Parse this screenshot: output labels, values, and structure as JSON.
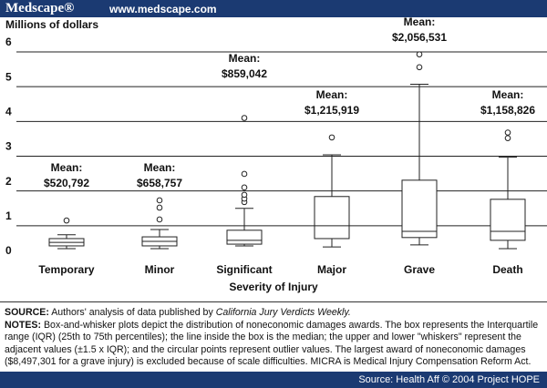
{
  "header": {
    "logo": "Medscape®",
    "url": "www.medscape.com"
  },
  "chart_data": {
    "type": "box",
    "y_label": "Millions of dollars",
    "x_label": "Severity of Injury",
    "categories": [
      "Temporary",
      "Minor",
      "Significant",
      "Major",
      "Grave",
      "Death"
    ],
    "boxes": [
      {
        "whislo": 0.34,
        "q1": 0.42,
        "med": 0.52,
        "q3": 0.63,
        "whishi": 0.74,
        "fliers": [
          1.15
        ]
      },
      {
        "whislo": 0.34,
        "q1": 0.42,
        "med": 0.55,
        "q3": 0.68,
        "whishi": 0.89,
        "fliers": [
          1.18,
          1.52,
          1.73
        ]
      },
      {
        "whislo": 0.42,
        "q1": 0.47,
        "med": 0.58,
        "q3": 0.87,
        "whishi": 1.5,
        "fliers": [
          1.68,
          1.78,
          1.89,
          2.1,
          2.49,
          4.1
        ]
      },
      {
        "whislo": 0.39,
        "q1": 0.63,
        "med": 1.0,
        "q3": 1.84,
        "whishi": 3.04,
        "fliers": [
          3.54
        ]
      },
      {
        "whislo": 0.45,
        "q1": 0.66,
        "med": 0.84,
        "q3": 2.31,
        "whishi": 5.07,
        "fliers": [
          5.56,
          5.93
        ]
      },
      {
        "whislo": 0.34,
        "q1": 0.58,
        "med": 0.84,
        "q3": 1.76,
        "whishi": 2.97,
        "fliers": [
          3.52,
          3.68
        ]
      }
    ],
    "mean_label": "Mean:",
    "means": [
      0.520792,
      0.658757,
      0.859042,
      1.215919,
      2.056531,
      1.158826
    ],
    "value_labels": [
      "$520,792",
      "$658,757",
      "$859,042",
      "$1,215,919",
      "$2,056,531",
      "$1,158,826"
    ],
    "ylim": [
      0,
      6
    ],
    "yticks": [
      0,
      1,
      2,
      3,
      4,
      5,
      6
    ],
    "grid": true,
    "color": "#222222"
  },
  "footer": {
    "source_label": "SOURCE:",
    "source_text": "Authors' analysis of data published by",
    "source_italic": "California Jury Verdicts Weekly.",
    "notes_label": "NOTES:",
    "notes_text": "Box-and-whisker plots depict the distribution of noneconomic damages awards. The box represents the Interquartile range (IQR) (25th to 75th percentiles); the line inside the box is the median; the upper and lower \"whiskers\" represent the adjacent values (±1.5 x IQR); and the circular points represent outlier values. The largest award of noneconomic damages ($8,497,301 for a grave injury) is excluded because of scale difficulties. MICRA is Medical Injury Compensation Reform Act.",
    "credit": "Source: Health Aff © 2004 Project HOPE"
  }
}
